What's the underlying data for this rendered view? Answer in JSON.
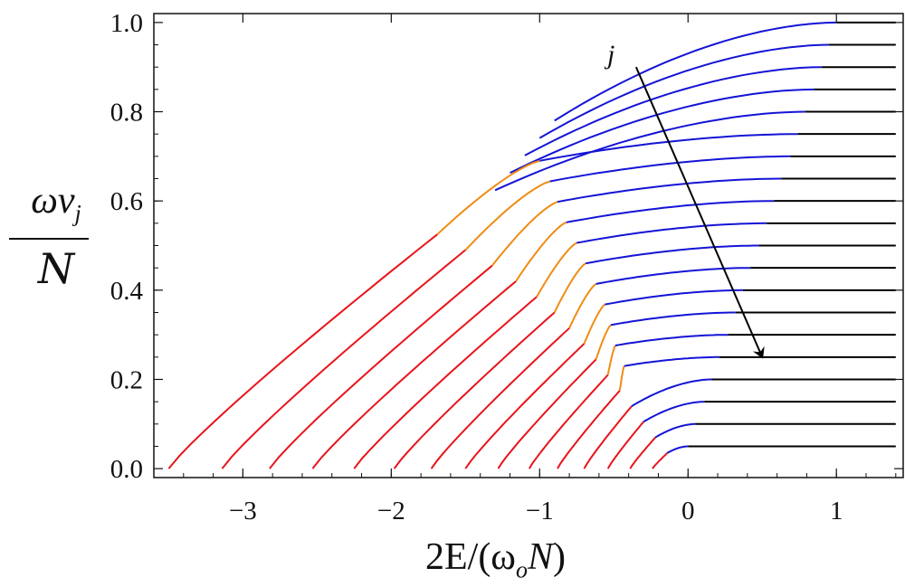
{
  "chart_data": {
    "type": "line",
    "title": "",
    "xlabel": "2E/(ω_oN)",
    "xlabel_parts": {
      "pre": "2E/(ω",
      "sub": "o",
      "script": "N",
      "post": ")"
    },
    "ylabel_numerator": "ων",
    "ylabel_numerator_sub": "j",
    "ylabel_denominator": "N",
    "xlim": [
      -3.6,
      1.45
    ],
    "ylim": [
      -0.02,
      1.02
    ],
    "xticks": [
      -3,
      -2,
      -1,
      0,
      1
    ],
    "xtick_labels": [
      "−3",
      "−2",
      "−1",
      "0",
      "1"
    ],
    "yticks": [
      0.0,
      0.2,
      0.4,
      0.6,
      0.8,
      1.0
    ],
    "ytick_labels": [
      "0.0",
      "0.2",
      "0.4",
      "0.6",
      "0.8",
      "1.0"
    ],
    "grid": false,
    "colors": {
      "red": "#e8141b",
      "orange": "#ef8c14",
      "blue": "#1414d6",
      "black": "#000000"
    },
    "annotation": {
      "text": "j",
      "arrow_from": [
        -0.35,
        0.9
      ],
      "arrow_to": [
        0.5,
        0.25
      ]
    },
    "series": [
      {
        "level": 1.0,
        "x_start": -0.9,
        "x_red_end": -0.9,
        "x_orange_end": -0.9,
        "x_blue_end": 1.0,
        "x_end": 1.4
      },
      {
        "level": 0.95,
        "x_start": -1.0,
        "x_red_end": -1.0,
        "x_orange_end": -1.0,
        "x_blue_end": 0.95,
        "x_end": 1.4
      },
      {
        "level": 0.9,
        "x_start": -1.1,
        "x_red_end": -1.1,
        "x_orange_end": -1.1,
        "x_blue_end": 0.9,
        "x_end": 1.4
      },
      {
        "level": 0.85,
        "x_start": -1.2,
        "x_red_end": -1.2,
        "x_orange_end": -1.2,
        "x_blue_end": 0.85,
        "x_end": 1.4
      },
      {
        "level": 0.8,
        "x_start": -1.3,
        "x_red_end": -1.3,
        "x_orange_end": -1.3,
        "x_blue_end": 0.79,
        "x_end": 1.4
      },
      {
        "level": 0.75,
        "x_start": -3.5,
        "x_red_end": -1.69,
        "x_orange_end": -1.0,
        "x_blue_end": 0.74,
        "x_end": 1.4
      },
      {
        "level": 0.7,
        "x_start": -3.14,
        "x_red_end": -1.5,
        "x_orange_end": -0.93,
        "x_blue_end": 0.69,
        "x_end": 1.4
      },
      {
        "level": 0.65,
        "x_start": -2.82,
        "x_red_end": -1.32,
        "x_orange_end": -0.88,
        "x_blue_end": 0.63,
        "x_end": 1.4
      },
      {
        "level": 0.6,
        "x_start": -2.53,
        "x_red_end": -1.16,
        "x_orange_end": -0.82,
        "x_blue_end": 0.58,
        "x_end": 1.4
      },
      {
        "level": 0.55,
        "x_start": -2.25,
        "x_red_end": -1.02,
        "x_orange_end": -0.75,
        "x_blue_end": 0.53,
        "x_end": 1.4
      },
      {
        "level": 0.5,
        "x_start": -1.98,
        "x_red_end": -0.9,
        "x_orange_end": -0.69,
        "x_blue_end": 0.48,
        "x_end": 1.4
      },
      {
        "level": 0.45,
        "x_start": -1.73,
        "x_red_end": -0.8,
        "x_orange_end": -0.62,
        "x_blue_end": 0.42,
        "x_end": 1.4
      },
      {
        "level": 0.4,
        "x_start": -1.5,
        "x_red_end": -0.7,
        "x_orange_end": -0.56,
        "x_blue_end": 0.37,
        "x_end": 1.4
      },
      {
        "level": 0.35,
        "x_start": -1.28,
        "x_red_end": -0.62,
        "x_orange_end": -0.52,
        "x_blue_end": 0.32,
        "x_end": 1.4
      },
      {
        "level": 0.3,
        "x_start": -1.07,
        "x_red_end": -0.54,
        "x_orange_end": -0.49,
        "x_blue_end": 0.27,
        "x_end": 1.4
      },
      {
        "level": 0.25,
        "x_start": -0.88,
        "x_red_end": -0.46,
        "x_orange_end": -0.43,
        "x_blue_end": 0.21,
        "x_end": 1.4
      },
      {
        "level": 0.2,
        "x_start": -0.7,
        "x_red_end": -0.38,
        "x_orange_end": -0.38,
        "x_blue_end": 0.16,
        "x_end": 1.4
      },
      {
        "level": 0.15,
        "x_start": -0.54,
        "x_red_end": -0.3,
        "x_orange_end": -0.3,
        "x_blue_end": 0.11,
        "x_end": 1.4
      },
      {
        "level": 0.1,
        "x_start": -0.39,
        "x_red_end": -0.22,
        "x_orange_end": -0.22,
        "x_blue_end": 0.05,
        "x_end": 1.4
      },
      {
        "level": 0.05,
        "x_start": -0.24,
        "x_red_end": -0.14,
        "x_orange_end": -0.14,
        "x_blue_end": 0.0,
        "x_end": 1.4
      }
    ]
  }
}
